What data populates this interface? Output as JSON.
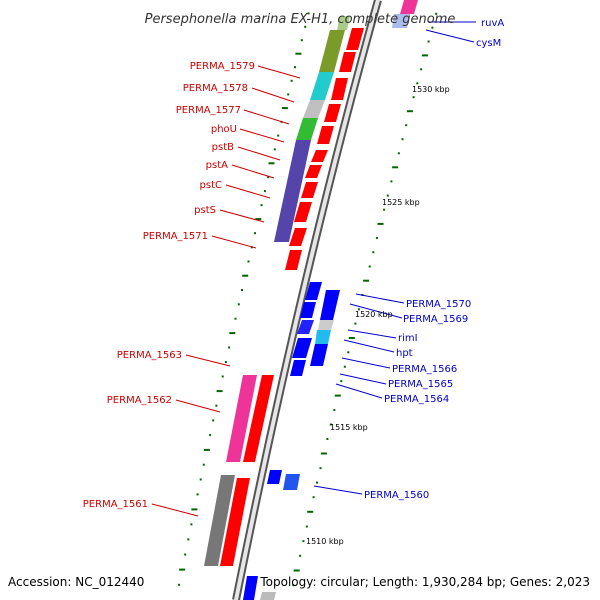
{
  "title": "Persephonella marina EX-H1, complete genome",
  "footer": {
    "accession": "Accession: NC_012440",
    "summary": "Topology: circular; Length: 1,930,284 bp; Genes: 2,023"
  },
  "colors": {
    "forward_label": "#cc0000",
    "reverse_label": "#0000cc",
    "forward_gene": "#ff0000",
    "reverse_gene": "#0000ff",
    "backbone": "#999999",
    "tick": "#006600"
  },
  "ticks": [
    {
      "label": "1530 kbp"
    },
    {
      "label": "1525 kbp"
    },
    {
      "label": "1520 kbp"
    },
    {
      "label": "1515 kbp"
    },
    {
      "label": "1510 kbp"
    }
  ],
  "forward_labels": [
    {
      "text": "PERMA_1579"
    },
    {
      "text": "PERMA_1578"
    },
    {
      "text": "PERMA_1577"
    },
    {
      "text": "phoU"
    },
    {
      "text": "pstB"
    },
    {
      "text": "pstA"
    },
    {
      "text": "pstC"
    },
    {
      "text": "pstS"
    },
    {
      "text": "PERMA_1571"
    },
    {
      "text": "PERMA_1563"
    },
    {
      "text": "PERMA_1562"
    },
    {
      "text": "PERMA_1561"
    }
  ],
  "reverse_labels": [
    {
      "text": "ruvA"
    },
    {
      "text": "cysM"
    },
    {
      "text": "PERMA_1570"
    },
    {
      "text": "PERMA_1569"
    },
    {
      "text": "rimI"
    },
    {
      "text": "hpt"
    },
    {
      "text": "PERMA_1566"
    },
    {
      "text": "PERMA_1565"
    },
    {
      "text": "PERMA_1564"
    },
    {
      "text": "PERMA_1560"
    }
  ]
}
